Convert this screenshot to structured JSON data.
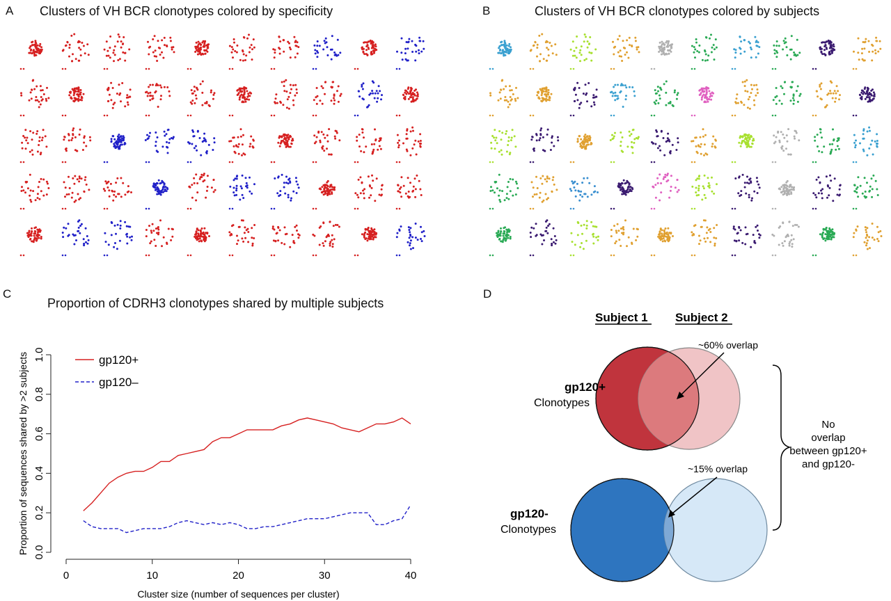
{
  "panels": {
    "A": {
      "letter": "A",
      "title": "Clusters of VH BCR clonotypes colored by specificity"
    },
    "B": {
      "letter": "B",
      "title": "Clusters of VH BCR clonotypes colored by subjects"
    },
    "C": {
      "letter": "C",
      "title": "Proportion of CDRH3 clonotypes shared by multiple subjects"
    },
    "D": {
      "letter": "D"
    }
  },
  "colors": {
    "gp120_pos": "#d62020",
    "gp120_neg": "#2020c8",
    "venn_pos_strong": "#c0343d",
    "venn_pos_light": "#f0c4c6",
    "venn_overlap_pos": "#dc7a7d",
    "venn_neg_strong": "#2e75bf",
    "venn_neg_light": "#d6e8f7",
    "venn_overlap_neg": "#7fa9d5"
  },
  "cluster_grid_A": {
    "rows": [
      [
        "red",
        "red",
        "red",
        "red",
        "red",
        "red",
        "red",
        "blue",
        "red",
        "blue"
      ],
      [
        "red",
        "red",
        "red",
        "red",
        "red",
        "red",
        "red",
        "red",
        "blue",
        "red"
      ],
      [
        "red",
        "red",
        "blue",
        "blue",
        "blue",
        "red",
        "red",
        "red",
        "red",
        "red"
      ],
      [
        "red",
        "red",
        "red",
        "blue",
        "red",
        "blue",
        "blue",
        "red",
        "red",
        "red"
      ],
      [
        "red",
        "blue",
        "blue",
        "red",
        "red",
        "red",
        "red",
        "red",
        "red",
        "blue"
      ]
    ]
  },
  "cluster_grid_B": {
    "palette": [
      "#3aa0d0",
      "#e0a030",
      "#a8e030",
      "#2aaa55",
      "#3a1a70",
      "#e060c0",
      "#b0b0b0",
      "#3a8fd0"
    ],
    "rows": [
      [
        0,
        1,
        2,
        1,
        6,
        3,
        0,
        3,
        4,
        1
      ],
      [
        1,
        1,
        4,
        0,
        3,
        5,
        1,
        3,
        1,
        4
      ],
      [
        2,
        4,
        1,
        2,
        4,
        1,
        2,
        6,
        3,
        0
      ],
      [
        3,
        1,
        7,
        4,
        5,
        2,
        4,
        6,
        4,
        3
      ],
      [
        3,
        4,
        2,
        1,
        1,
        1,
        4,
        6,
        3,
        1
      ]
    ]
  },
  "chart_data": {
    "type": "line",
    "title": "Proportion of CDRH3 clonotypes shared by multiple subjects",
    "xlabel": "Cluster size (number of sequences per cluster)",
    "ylabel": "Proportion of sequences shared by >2 subjects",
    "xlim": [
      0,
      40
    ],
    "ylim": [
      0,
      1.0
    ],
    "xticks": [
      "0",
      "10",
      "20",
      "30",
      "40"
    ],
    "yticks": [
      "0.0",
      "0.2",
      "0.4",
      "0.6",
      "0.8",
      "1.0"
    ],
    "legend": {
      "position": "top-left"
    },
    "series": [
      {
        "name": "gp120+",
        "style": "solid",
        "color": "#d62020",
        "x": [
          2,
          3,
          4,
          5,
          6,
          7,
          8,
          9,
          10,
          11,
          12,
          13,
          14,
          15,
          16,
          17,
          18,
          19,
          20,
          21,
          22,
          23,
          24,
          25,
          26,
          27,
          28,
          29,
          30,
          31,
          32,
          33,
          34,
          35,
          36,
          37,
          38,
          39,
          40
        ],
        "y": [
          0.21,
          0.25,
          0.3,
          0.35,
          0.38,
          0.4,
          0.41,
          0.41,
          0.43,
          0.46,
          0.46,
          0.49,
          0.5,
          0.51,
          0.52,
          0.56,
          0.58,
          0.58,
          0.6,
          0.62,
          0.62,
          0.62,
          0.62,
          0.64,
          0.65,
          0.67,
          0.68,
          0.67,
          0.66,
          0.65,
          0.63,
          0.62,
          0.61,
          0.63,
          0.65,
          0.65,
          0.66,
          0.68,
          0.65
        ]
      },
      {
        "name": "gp120–",
        "style": "dashed",
        "color": "#2020c8",
        "x": [
          2,
          3,
          4,
          5,
          6,
          7,
          8,
          9,
          10,
          11,
          12,
          13,
          14,
          15,
          16,
          17,
          18,
          19,
          20,
          21,
          22,
          23,
          24,
          25,
          26,
          27,
          28,
          29,
          30,
          31,
          32,
          33,
          34,
          35,
          36,
          37,
          38,
          39,
          40
        ],
        "y": [
          0.16,
          0.13,
          0.12,
          0.12,
          0.12,
          0.1,
          0.11,
          0.12,
          0.12,
          0.12,
          0.13,
          0.15,
          0.16,
          0.15,
          0.14,
          0.15,
          0.14,
          0.15,
          0.14,
          0.12,
          0.12,
          0.13,
          0.13,
          0.14,
          0.15,
          0.16,
          0.17,
          0.17,
          0.17,
          0.18,
          0.19,
          0.2,
          0.2,
          0.2,
          0.14,
          0.14,
          0.16,
          0.17,
          0.24
        ]
      }
    ]
  },
  "venn": {
    "subject1": "Subject 1",
    "subject2": "Subject 2",
    "pos_label_bold": "gp120+",
    "pos_label": "Clonotypes",
    "neg_label_bold": "gp120-",
    "neg_label": "Clonotypes",
    "pos_overlap": "~60% overlap",
    "neg_overlap": "~15% overlap",
    "brace_note": [
      "No",
      "overlap",
      "between gp120+",
      "and gp120-"
    ]
  }
}
